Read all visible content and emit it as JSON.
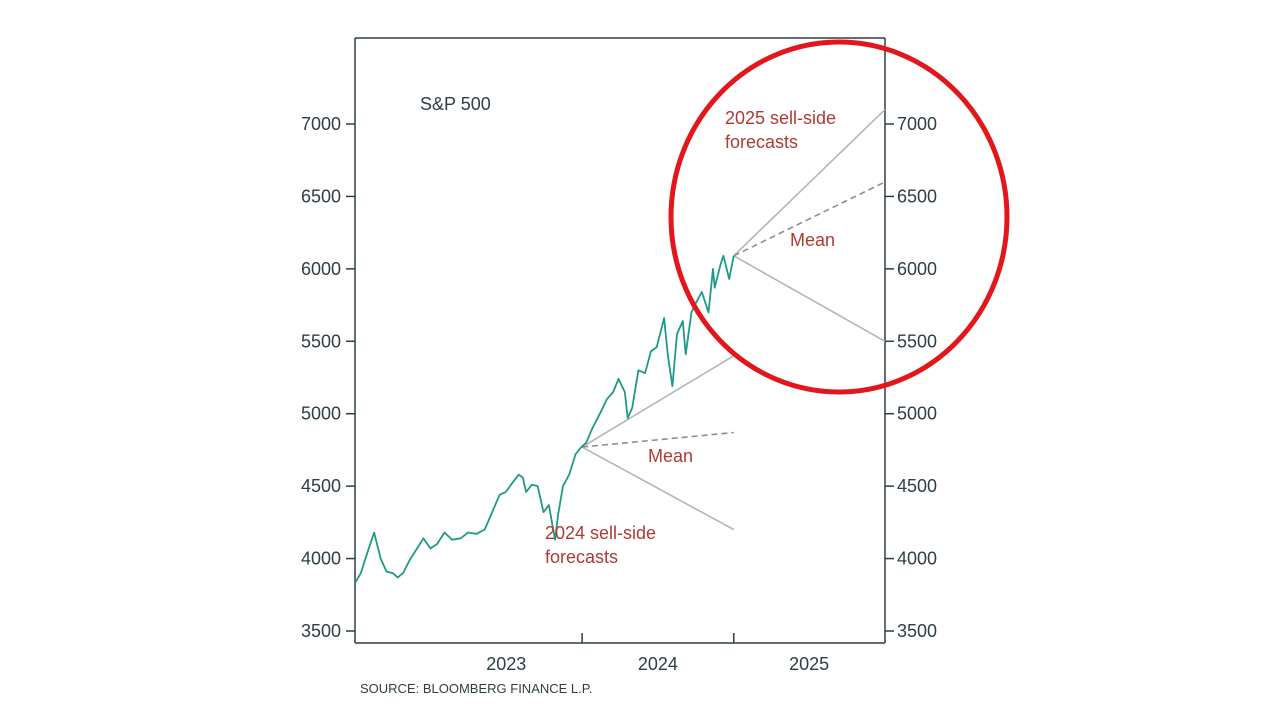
{
  "colors": {
    "price_line": "#1f9a86",
    "axis": "#2e3e44",
    "forecast_solid": "#b5b5b5",
    "forecast_mean": "#8e8e8e",
    "annotation": "#b03a34",
    "highlight_circle": "#e3161c"
  },
  "source": "SOURCE: BLOOMBERG FINANCE L.P.",
  "chart_data": {
    "type": "line",
    "title": "S&P 500",
    "xlabel": "",
    "ylabel": "",
    "xlim": [
      "2022-07-01",
      "2025-12-31"
    ],
    "ylim": [
      3400,
      7500
    ],
    "yticks": [
      3500,
      4000,
      4500,
      5000,
      5500,
      6000,
      6500,
      7000
    ],
    "ytick_labels": [
      "3500",
      "4000",
      "4500",
      "5000",
      "5500",
      "6000",
      "6500",
      "7000"
    ],
    "xtick_positions": [
      "2023-07-01",
      "2024-07-01",
      "2025-07-01"
    ],
    "xtick_labels": [
      "2023",
      "2024",
      "2025"
    ],
    "year_boundaries": [
      "2023-12-31",
      "2024-12-31"
    ],
    "grid": false,
    "legend": "none",
    "series": [
      {
        "values": [
          {
            "x": "2022-07-01",
            "y": 3830
          },
          {
            "x": "2022-07-15",
            "y": 3900
          },
          {
            "x": "2022-08-01",
            "y": 4050
          },
          {
            "x": "2022-08-16",
            "y": 4180
          },
          {
            "x": "2022-09-01",
            "y": 4000
          },
          {
            "x": "2022-09-15",
            "y": 3910
          },
          {
            "x": "2022-09-30",
            "y": 3900
          },
          {
            "x": "2022-10-12",
            "y": 3870
          },
          {
            "x": "2022-10-25",
            "y": 3900
          },
          {
            "x": "2022-11-10",
            "y": 3990
          },
          {
            "x": "2022-11-30",
            "y": 4080
          },
          {
            "x": "2022-12-13",
            "y": 4140
          },
          {
            "x": "2022-12-30",
            "y": 4070
          },
          {
            "x": "2023-01-15",
            "y": 4100
          },
          {
            "x": "2023-02-02",
            "y": 4180
          },
          {
            "x": "2023-02-20",
            "y": 4130
          },
          {
            "x": "2023-03-13",
            "y": 4140
          },
          {
            "x": "2023-03-31",
            "y": 4180
          },
          {
            "x": "2023-04-20",
            "y": 4170
          },
          {
            "x": "2023-05-10",
            "y": 4200
          },
          {
            "x": "2023-05-25",
            "y": 4300
          },
          {
            "x": "2023-06-15",
            "y": 4440
          },
          {
            "x": "2023-06-30",
            "y": 4460
          },
          {
            "x": "2023-07-15",
            "y": 4520
          },
          {
            "x": "2023-07-31",
            "y": 4580
          },
          {
            "x": "2023-08-10",
            "y": 4560
          },
          {
            "x": "2023-08-18",
            "y": 4460
          },
          {
            "x": "2023-09-01",
            "y": 4510
          },
          {
            "x": "2023-09-15",
            "y": 4500
          },
          {
            "x": "2023-09-29",
            "y": 4320
          },
          {
            "x": "2023-10-12",
            "y": 4370
          },
          {
            "x": "2023-10-20",
            "y": 4240
          },
          {
            "x": "2023-10-27",
            "y": 4130
          },
          {
            "x": "2023-11-03",
            "y": 4300
          },
          {
            "x": "2023-11-15",
            "y": 4500
          },
          {
            "x": "2023-11-30",
            "y": 4580
          },
          {
            "x": "2023-12-15",
            "y": 4720
          },
          {
            "x": "2023-12-29",
            "y": 4770
          }
        ]
      }
    ],
    "series_2024": {
      "values": [
        {
          "x": "2023-12-29",
          "y": 4770
        },
        {
          "x": "2024-01-10",
          "y": 4800
        },
        {
          "x": "2024-01-25",
          "y": 4900
        },
        {
          "x": "2024-02-12",
          "y": 5000
        },
        {
          "x": "2024-02-29",
          "y": 5100
        },
        {
          "x": "2024-03-15",
          "y": 5150
        },
        {
          "x": "2024-03-28",
          "y": 5240
        },
        {
          "x": "2024-04-12",
          "y": 5150
        },
        {
          "x": "2024-04-19",
          "y": 4970
        },
        {
          "x": "2024-04-30",
          "y": 5040
        },
        {
          "x": "2024-05-15",
          "y": 5300
        },
        {
          "x": "2024-05-31",
          "y": 5280
        },
        {
          "x": "2024-06-14",
          "y": 5430
        },
        {
          "x": "2024-06-28",
          "y": 5460
        },
        {
          "x": "2024-07-16",
          "y": 5660
        },
        {
          "x": "2024-07-25",
          "y": 5400
        },
        {
          "x": "2024-08-05",
          "y": 5190
        },
        {
          "x": "2024-08-16",
          "y": 5550
        },
        {
          "x": "2024-08-30",
          "y": 5640
        },
        {
          "x": "2024-09-06",
          "y": 5410
        },
        {
          "x": "2024-09-20",
          "y": 5700
        },
        {
          "x": "2024-09-30",
          "y": 5760
        },
        {
          "x": "2024-10-15",
          "y": 5840
        },
        {
          "x": "2024-10-31",
          "y": 5700
        },
        {
          "x": "2024-11-11",
          "y": 6000
        },
        {
          "x": "2024-11-15",
          "y": 5870
        },
        {
          "x": "2024-11-29",
          "y": 6030
        },
        {
          "x": "2024-12-06",
          "y": 6090
        },
        {
          "x": "2024-12-20",
          "y": 5930
        },
        {
          "x": "2024-12-31",
          "y": 6090
        }
      ]
    },
    "forecasts_2024": {
      "label": "2024 sell-side forecasts",
      "mean_label": "Mean",
      "start": {
        "x": "2023-12-31",
        "y": 4770
      },
      "end_x": "2024-12-31",
      "high": 5400,
      "mean": 4870,
      "low": 4200
    },
    "forecasts_2025": {
      "label": "2025 sell-side forecasts",
      "mean_label": "Mean",
      "start": {
        "x": "2024-12-31",
        "y": 6090
      },
      "end_x": "2025-12-31",
      "high": 7100,
      "mean": 6600,
      "low": 5500
    }
  }
}
